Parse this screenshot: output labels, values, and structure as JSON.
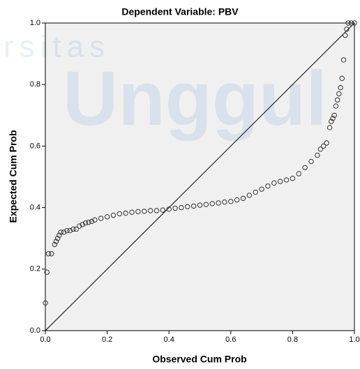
{
  "chart_data": {
    "type": "scatter",
    "title": "Dependent Variable: PBV",
    "xlabel": "Observed Cum Prob",
    "ylabel": "Expected Cum Prob",
    "watermark": [
      "rsitas",
      "Unggul"
    ],
    "xlim": [
      0,
      1
    ],
    "ylim": [
      0,
      1
    ],
    "xticks": [
      {
        "value": 0,
        "label": "0.0"
      },
      0.2,
      0.4,
      0.6,
      0.8,
      {
        "value": 1,
        "label": "1.0"
      }
    ],
    "yticks": [
      {
        "value": 0,
        "label": "0.0"
      },
      0.2,
      0.4,
      0.6,
      0.8,
      {
        "value": 1,
        "label": "1.0"
      }
    ],
    "color": "#333333",
    "x": [
      0.0,
      0.005,
      0.01,
      0.02,
      0.03,
      0.035,
      0.04,
      0.045,
      0.05,
      0.06,
      0.07,
      0.08,
      0.09,
      0.1,
      0.11,
      0.12,
      0.13,
      0.14,
      0.15,
      0.16,
      0.18,
      0.2,
      0.22,
      0.24,
      0.26,
      0.28,
      0.3,
      0.32,
      0.34,
      0.36,
      0.38,
      0.4,
      0.42,
      0.44,
      0.46,
      0.48,
      0.5,
      0.52,
      0.54,
      0.56,
      0.58,
      0.6,
      0.62,
      0.64,
      0.66,
      0.68,
      0.7,
      0.72,
      0.74,
      0.76,
      0.78,
      0.8,
      0.82,
      0.84,
      0.86,
      0.88,
      0.89,
      0.9,
      0.91,
      0.92,
      0.925,
      0.93,
      0.935,
      0.94,
      0.945,
      0.95,
      0.955,
      0.96,
      0.965,
      0.97,
      0.975,
      0.98,
      0.99,
      1.0
    ],
    "values": [
      0.09,
      0.19,
      0.25,
      0.25,
      0.28,
      0.29,
      0.3,
      0.31,
      0.32,
      0.32,
      0.325,
      0.325,
      0.33,
      0.33,
      0.34,
      0.345,
      0.35,
      0.352,
      0.355,
      0.36,
      0.365,
      0.37,
      0.375,
      0.38,
      0.382,
      0.385,
      0.387,
      0.388,
      0.39,
      0.39,
      0.392,
      0.395,
      0.398,
      0.4,
      0.403,
      0.405,
      0.408,
      0.41,
      0.413,
      0.415,
      0.418,
      0.42,
      0.425,
      0.43,
      0.44,
      0.45,
      0.46,
      0.47,
      0.48,
      0.485,
      0.49,
      0.495,
      0.51,
      0.53,
      0.55,
      0.57,
      0.59,
      0.6,
      0.61,
      0.66,
      0.68,
      0.69,
      0.7,
      0.73,
      0.75,
      0.77,
      0.79,
      0.82,
      0.88,
      0.96,
      0.98,
      1.0,
      1.0,
      1.0
    ]
  }
}
